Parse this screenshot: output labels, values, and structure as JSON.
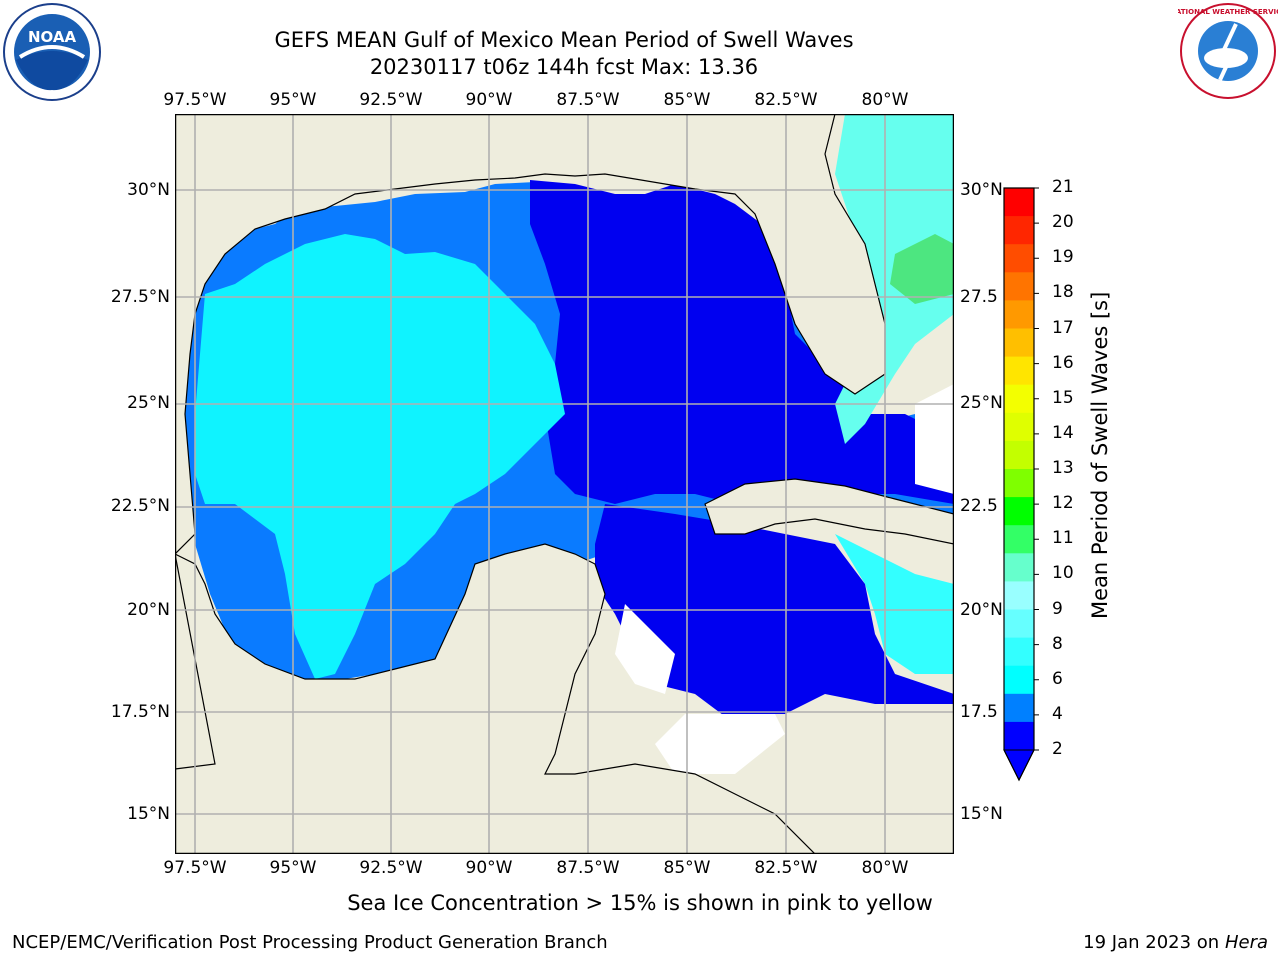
{
  "header": {
    "title_line1": "GEFS MEAN Gulf of Mexico Mean Period of Swell Waves",
    "title_line2": "20230117 t06z 144h fcst   Max: 13.36"
  },
  "logos": {
    "left": "NOAA",
    "right": "NATIONAL WEATHER SERVICE"
  },
  "map": {
    "lon_ticks": [
      "97.5°W",
      "95°W",
      "92.5°W",
      "90°W",
      "87.5°W",
      "85°W",
      "82.5°W",
      "80°W"
    ],
    "lat_ticks_left": [
      "30°N",
      "27.5°N",
      "25°N",
      "22.5°N",
      "20°N",
      "17.5°N",
      "15°N"
    ],
    "lat_ticks_right": [
      "30°N",
      "27.5",
      "25°N",
      "22.5",
      "20°N",
      "17.5",
      "15°N"
    ]
  },
  "colorbar": {
    "label": "Mean Period of Swell Waves [s]",
    "ticks": [
      "21",
      "20",
      "19",
      "18",
      "17",
      "16",
      "15",
      "14",
      "13",
      "12",
      "11",
      "10",
      "9",
      "8",
      "6",
      "4",
      "2"
    ],
    "colors": [
      "#ff0000",
      "#ff2600",
      "#ff4d00",
      "#ff7400",
      "#ff9900",
      "#ffbf00",
      "#ffe500",
      "#f3ff00",
      "#dfff00",
      "#c3ff00",
      "#7fff00",
      "#00ff00",
      "#33ff66",
      "#66ffcc",
      "#99ffff",
      "#66ffff",
      "#33ffff",
      "#00ffff",
      "#0080ff",
      "#0000ff"
    ]
  },
  "notes": {
    "sea_ice": "Sea Ice Concentration > 15% is shown in pink to yellow"
  },
  "footer": {
    "left": "NCEP/EMC/Verification Post Processing Product Generation Branch",
    "right_prefix": "19 Jan 2023 on ",
    "right_host": "Hera"
  }
}
